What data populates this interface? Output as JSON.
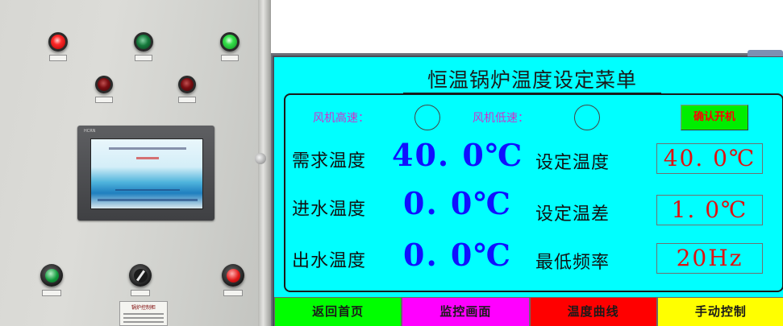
{
  "screen": {
    "title": "恒温锅炉温度设定菜单",
    "fan": {
      "high_label": "风机高速：",
      "low_label": "风机低速："
    },
    "confirm_button": {
      "label": "确认开机",
      "bg": "#00ee00",
      "fg": "#ff0000"
    },
    "readings": [
      {
        "label": "需求温度",
        "value": "40. 0℃"
      },
      {
        "label": "进水温度",
        "value": "0. 0℃"
      },
      {
        "label": "出水温度",
        "value": "0. 0℃"
      }
    ],
    "settings": [
      {
        "label": "设定温度",
        "value": "40. 0℃"
      },
      {
        "label": "设定温差",
        "value": "1. 0℃"
      },
      {
        "label": "最低频率",
        "value": "20Hz"
      }
    ],
    "nav": [
      {
        "label": "返回首页",
        "color": "#00ff00"
      },
      {
        "label": "监控画面",
        "color": "#ff00ff"
      },
      {
        "label": "温度曲线",
        "color": "#ff0000"
      },
      {
        "label": "手动控制",
        "color": "#ffff00"
      }
    ],
    "colors": {
      "background": "#00ffff",
      "value_text": "#1010ff",
      "setting_text": "#e01010",
      "fan_label": "#cc33cc"
    }
  },
  "cabinet": {
    "hmi_brand": "HCRN",
    "nameplate": "锅炉控制柜",
    "icons": [
      "indicator-lamp",
      "push-button",
      "selector-switch"
    ]
  }
}
